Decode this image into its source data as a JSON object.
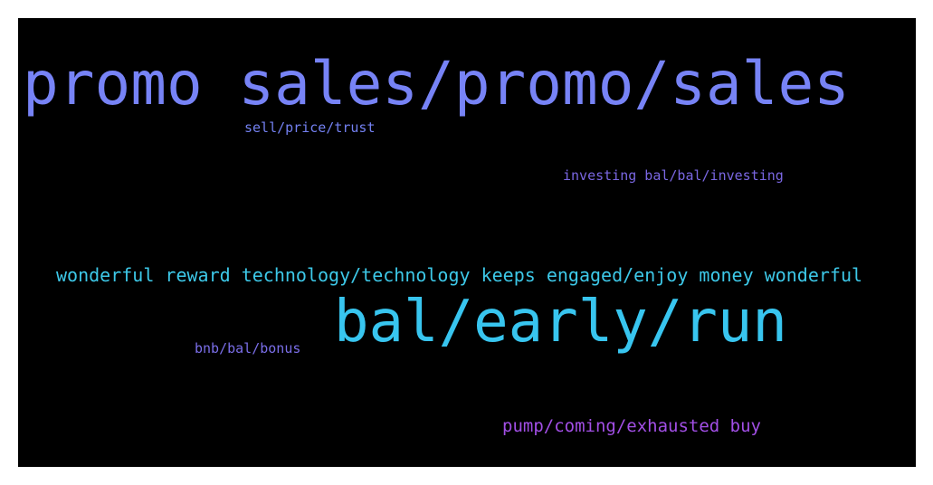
{
  "words": [
    {
      "text": "promo sales/promo/sales",
      "color": "#7783f6"
    },
    {
      "text": "sell/price/trust",
      "color": "#7380f0"
    },
    {
      "text": "investing bal/bal/investing",
      "color": "#7a67e2"
    },
    {
      "text": "wonderful reward technology/technology keeps engaged/enjoy money wonderful",
      "color": "#3dc8e8"
    },
    {
      "text": "bal/early/run",
      "color": "#38c5ef"
    },
    {
      "text": "bnb/bal/bonus",
      "color": "#7a6ee8"
    },
    {
      "text": "pump/coming/exhausted buy",
      "color": "#a24fe6"
    }
  ]
}
